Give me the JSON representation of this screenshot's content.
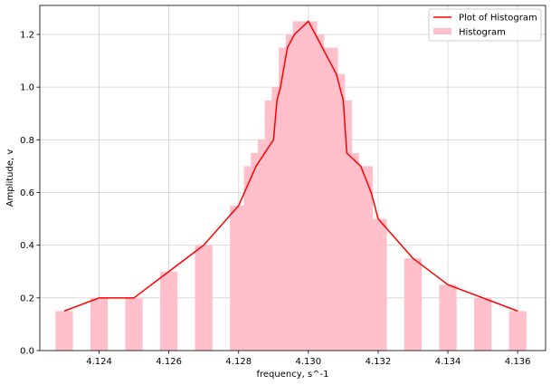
{
  "chart_data": {
    "type": "bar",
    "xlabel": "frequency, s^-1",
    "ylabel": "Amplitude, v",
    "xlim": [
      4.1223,
      4.1368
    ],
    "ylim": [
      0,
      1.31
    ],
    "xticks": [
      4.124,
      4.126,
      4.128,
      4.13,
      4.132,
      4.134,
      4.136
    ],
    "xtick_labels": [
      "4.124",
      "4.126",
      "4.128",
      "4.130",
      "4.132",
      "4.134",
      "4.136"
    ],
    "yticks": [
      0,
      0.2,
      0.4,
      0.6,
      0.8,
      1.0,
      1.2
    ],
    "ytick_labels": [
      "0.0",
      "0.2",
      "0.4",
      "0.6",
      "0.8",
      "1.0",
      "1.2"
    ],
    "grid": true,
    "legend_position": "top-right",
    "legend": [
      {
        "label": "Plot of Histogram",
        "kind": "line",
        "color": "#ff0000"
      },
      {
        "label": "Histogram",
        "kind": "patch",
        "color": "#ffc0cb"
      }
    ],
    "series": [
      {
        "name": "Histogram",
        "type": "bar",
        "color": "#ffc0cb",
        "bar_width": 0.0005,
        "x": [
          4.123,
          4.124,
          4.125,
          4.126,
          4.127,
          4.128,
          4.1282,
          4.1284,
          4.1286,
          4.1288,
          4.129,
          4.1292,
          4.1294,
          4.1296,
          4.1298,
          4.13,
          4.1302,
          4.1304,
          4.1306,
          4.1308,
          4.131,
          4.1312,
          4.1314,
          4.1316,
          4.1318,
          4.132,
          4.133,
          4.134,
          4.135,
          4.136
        ],
        "values": [
          0.15,
          0.2,
          0.2,
          0.3,
          0.4,
          0.55,
          0.55,
          0.7,
          0.75,
          0.8,
          0.95,
          1.0,
          1.15,
          1.2,
          1.25,
          1.25,
          1.2,
          1.15,
          1.15,
          1.05,
          0.95,
          0.75,
          0.7,
          0.7,
          0.5,
          0.5,
          0.35,
          0.25,
          0.2,
          0.15
        ]
      },
      {
        "name": "Plot of Histogram",
        "type": "line",
        "color": "#ff0000",
        "x": [
          4.123,
          4.124,
          4.125,
          4.126,
          4.127,
          4.128,
          4.1285,
          4.129,
          4.1291,
          4.1292,
          4.1294,
          4.1296,
          4.13,
          4.1302,
          4.1304,
          4.1306,
          4.1308,
          4.131,
          4.1311,
          4.1315,
          4.1318,
          4.132,
          4.133,
          4.134,
          4.135,
          4.136
        ],
        "values": [
          0.15,
          0.2,
          0.2,
          0.3,
          0.4,
          0.55,
          0.7,
          0.8,
          0.95,
          1.0,
          1.15,
          1.2,
          1.25,
          1.2,
          1.15,
          1.1,
          1.05,
          0.95,
          0.75,
          0.7,
          0.6,
          0.5,
          0.35,
          0.25,
          0.2,
          0.15
        ]
      }
    ]
  }
}
